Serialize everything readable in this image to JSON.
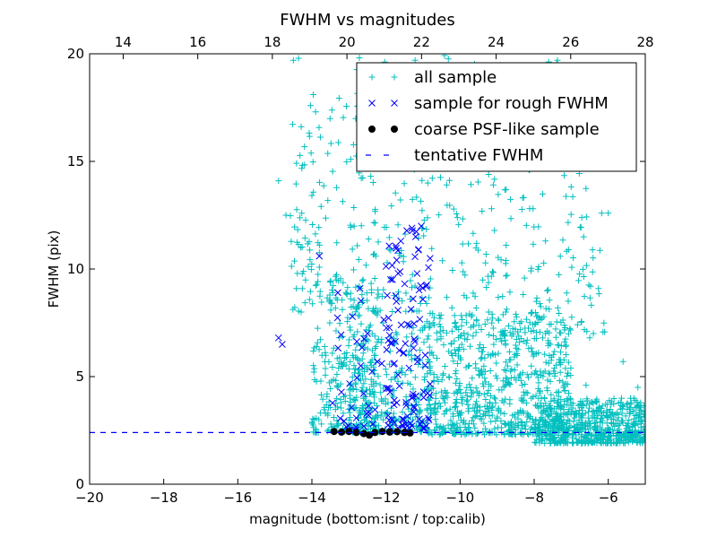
{
  "chart_data": {
    "type": "scatter",
    "title": "FWHM vs magnitudes",
    "xlabel": "magnitude (bottom:isnt / top:calib)",
    "ylabel": "FWHM (pix)",
    "xlim": [
      -20,
      -5
    ],
    "ylim": [
      0,
      20
    ],
    "top_xlim": [
      13.1,
      28.0
    ],
    "x_ticks": [
      -20,
      -18,
      -16,
      -14,
      -12,
      -10,
      -8,
      -6
    ],
    "y_ticks": [
      0,
      5,
      10,
      15,
      20
    ],
    "top_ticks": [
      14,
      16,
      18,
      20,
      22,
      24,
      26,
      28
    ],
    "grid": false,
    "legend_position": "top-right",
    "colors": {
      "all": "#00bfbf",
      "rough": "#0000ff",
      "coarse": "#000000",
      "tentative": "#0000ff"
    },
    "series": [
      {
        "name": "all sample",
        "marker": "plus",
        "clusters": [
          {
            "x_range": [
              -14.0,
              -12.2
            ],
            "y_range": [
              2.4,
              9.5
            ],
            "count": 260,
            "seed": 11
          },
          {
            "x_range": [
              -13.0,
              -10.8
            ],
            "y_range": [
              2.4,
              7.5
            ],
            "count": 260,
            "seed": 12
          },
          {
            "x_range": [
              -10.9,
              -7.0
            ],
            "y_range": [
              2.3,
              8.0
            ],
            "count": 700,
            "seed": 13
          },
          {
            "x_range": [
              -8.0,
              -5.0
            ],
            "y_range": [
              1.9,
              4.0
            ],
            "count": 600,
            "seed": 14
          },
          {
            "x_range": [
              -14.6,
              -10.8
            ],
            "y_range": [
              8.0,
              20.0
            ],
            "count": 240,
            "seed": 15
          },
          {
            "x_range": [
              -10.8,
              -6.0
            ],
            "y_range": [
              7.0,
              20.0
            ],
            "count": 260,
            "seed": 16
          }
        ],
        "points": [
          {
            "x": -14.9,
            "y": 14.1
          },
          {
            "x": -14.5,
            "y": 19.7
          },
          {
            "x": -14.7,
            "y": 12.5
          },
          {
            "x": -6.5,
            "y": 6.8
          },
          {
            "x": -6.0,
            "y": 12.6
          },
          {
            "x": -6.6,
            "y": 4.6
          },
          {
            "x": -5.6,
            "y": 5.7
          },
          {
            "x": -5.2,
            "y": 4.5
          },
          {
            "x": -14.3,
            "y": 11.0
          },
          {
            "x": -13.9,
            "y": 17.3
          },
          {
            "x": -11.7,
            "y": 19.0
          },
          {
            "x": -9.5,
            "y": 19.3
          }
        ]
      },
      {
        "name": "sample for rough FWHM",
        "marker": "x",
        "clusters": [
          {
            "x_range": [
              -13.5,
              -12.0
            ],
            "y_range": [
              2.5,
              9.0
            ],
            "count": 35,
            "seed": 21
          },
          {
            "x_range": [
              -12.0,
              -10.8
            ],
            "y_range": [
              2.6,
              12.0
            ],
            "count": 110,
            "seed": 22
          }
        ],
        "points": [
          {
            "x": -14.9,
            "y": 6.8
          },
          {
            "x": -14.8,
            "y": 6.5
          },
          {
            "x": -13.8,
            "y": 10.6
          },
          {
            "x": -11.3,
            "y": 11.9
          },
          {
            "x": -11.6,
            "y": 11.3
          },
          {
            "x": -11.2,
            "y": 11.5
          },
          {
            "x": -12.7,
            "y": 9.1
          },
          {
            "x": -12.5,
            "y": 7.0
          },
          {
            "x": -13.3,
            "y": 8.9
          }
        ]
      },
      {
        "name": "coarse PSF-like sample",
        "marker": "dot",
        "points": [
          {
            "x": -13.4,
            "y": 2.45
          },
          {
            "x": -13.2,
            "y": 2.42
          },
          {
            "x": -13.0,
            "y": 2.45
          },
          {
            "x": -12.8,
            "y": 2.4
          },
          {
            "x": -12.6,
            "y": 2.35
          },
          {
            "x": -12.45,
            "y": 2.28
          },
          {
            "x": -12.3,
            "y": 2.4
          },
          {
            "x": -12.1,
            "y": 2.45
          },
          {
            "x": -11.9,
            "y": 2.42
          },
          {
            "x": -11.7,
            "y": 2.44
          },
          {
            "x": -11.5,
            "y": 2.4
          },
          {
            "x": -11.35,
            "y": 2.38
          }
        ]
      },
      {
        "name": "tentative FWHM",
        "line": "dashed",
        "y": 2.4
      }
    ]
  }
}
